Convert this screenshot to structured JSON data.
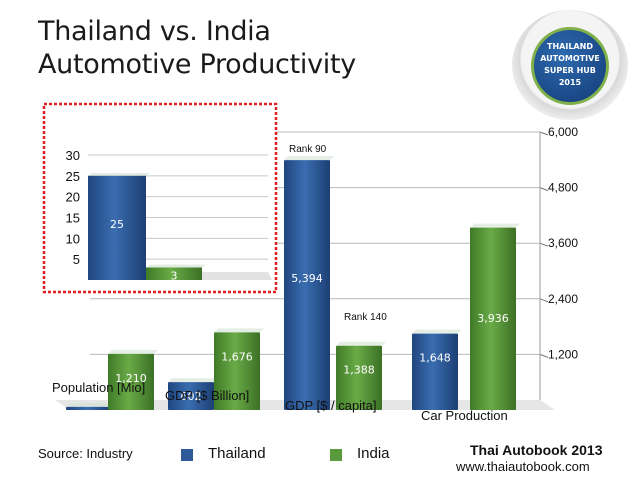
{
  "title": {
    "line1": "Thailand vs. India",
    "line2": "Automotive Productivity"
  },
  "badge": {
    "line1": "THAILAND",
    "line2": "AUTOMOTIVE",
    "line3": "SUPER HUB",
    "line4": "2015"
  },
  "source": "Source: Industry",
  "brand": {
    "name": "Thai Autobook 2013",
    "url": "www.thaiautobook.com"
  },
  "colors": {
    "thailand": "#2e5a9a",
    "india": "#5b9a3c",
    "highlight_box": "#e02020"
  },
  "chart_data": {
    "type": "bar",
    "title": "Thailand vs. India Automotive Productivity",
    "categories": [
      "Population [Mio]",
      "GDP [$ Billion]",
      "GDP [$ / capita]",
      "Car Production"
    ],
    "series": [
      {
        "name": "Thailand",
        "values": [
          67,
          602,
          5394,
          1648
        ]
      },
      {
        "name": "India",
        "values": [
          1210,
          1676,
          1388,
          3936
        ]
      }
    ],
    "ylim": [
      0,
      6000
    ],
    "yticks": [
      "1,200",
      "2,400",
      "3,600",
      "4,800",
      "6,000"
    ],
    "legend": "bottom-center",
    "annotations": [
      {
        "text": "Rank 90",
        "category": "GDP [$ / capita]",
        "series": "Thailand"
      },
      {
        "text": "Rank 140",
        "category": "GDP [$ / capita]",
        "series": "India"
      }
    ],
    "inset": {
      "type": "bar",
      "categories": [
        "Thailand",
        "India"
      ],
      "values": [
        25,
        3
      ],
      "ylim": [
        0,
        30
      ],
      "yticks": [
        "5",
        "10",
        "15",
        "20",
        "25",
        "30"
      ]
    }
  }
}
